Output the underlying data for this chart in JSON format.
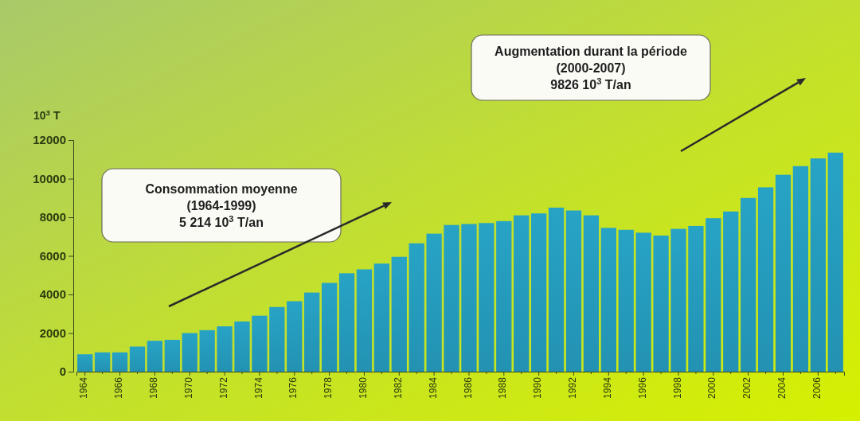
{
  "chart_data": {
    "type": "bar",
    "ylabel": "10$^{3}$ T",
    "categories": [
      "1964",
      null,
      "1966",
      null,
      "1968",
      null,
      "1970",
      null,
      "1972",
      null,
      "1974",
      null,
      "1976",
      null,
      "1978",
      null,
      "1980",
      null,
      "1982",
      null,
      "1984",
      null,
      "1986",
      null,
      "1988",
      null,
      "1990",
      null,
      "1992",
      null,
      "1994",
      null,
      "1996",
      null,
      "1998",
      null,
      "2000",
      null,
      "2002",
      null,
      "2004",
      null,
      "2006",
      null
    ],
    "values": [
      900,
      1000,
      1000,
      1300,
      1600,
      1650,
      2000,
      2150,
      2350,
      2600,
      2900,
      3350,
      3650,
      4100,
      4600,
      5100,
      5300,
      5600,
      5950,
      6650,
      7150,
      7600,
      7650,
      7700,
      7800,
      8100,
      8200,
      8500,
      8350,
      8100,
      7450,
      7350,
      7200,
      7050,
      7400,
      7550,
      7950,
      8300,
      9000,
      9550,
      10200,
      10650,
      11050,
      11350
    ],
    "color": "#27a3c6",
    "ylim": [
      0,
      12000
    ],
    "yticks": [
      0,
      2000,
      4000,
      6000,
      8000,
      10000,
      12000
    ],
    "grid": false,
    "annotations": [
      "Consommation moyenne\n(1964-1999)\n5 214 10$^{3}$ T/an",
      "Augmentation durant la période\n(2000-2007)\n9826 10$^{3}$ T/an"
    ]
  }
}
